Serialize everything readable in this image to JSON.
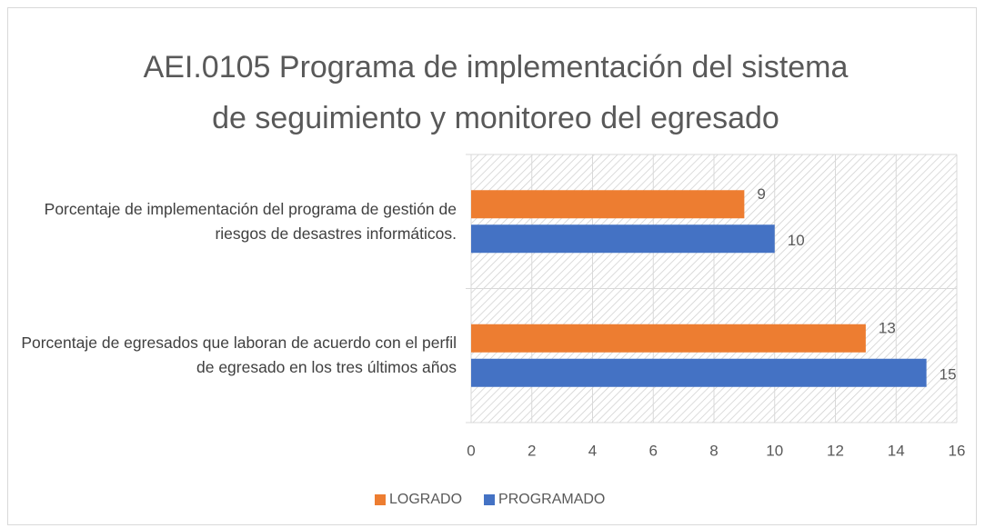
{
  "chart_data": {
    "type": "hbar",
    "title": "AEI.0105 Programa de implementación del sistema de seguimiento y monitoreo del egresado",
    "categories": [
      "Porcentaje de implementación del programa de gestión de riesgos de desastres informáticos.",
      "Porcentaje de egresados que laboran de acuerdo con el perfil de egresado en los tres últimos años"
    ],
    "series": [
      {
        "name": "LOGRADO",
        "color": "#ed7d31",
        "values": [
          9,
          13
        ]
      },
      {
        "name": "PROGRAMADO",
        "color": "#4472c4",
        "values": [
          10,
          15
        ]
      }
    ],
    "xlim": [
      0,
      16
    ],
    "xticks": [
      0,
      2,
      4,
      6,
      8,
      10,
      12,
      14,
      16
    ],
    "grid": true,
    "legend": "bottom"
  }
}
